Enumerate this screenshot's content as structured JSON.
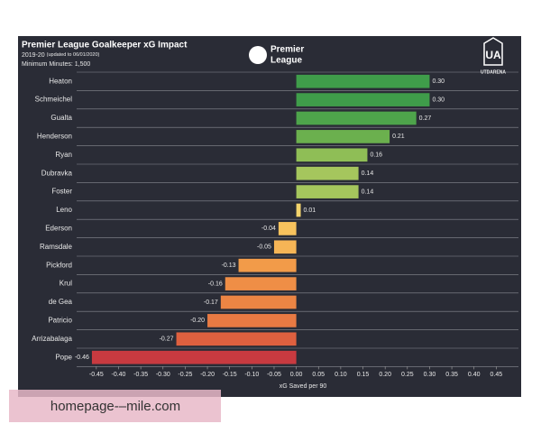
{
  "chart_data": {
    "type": "bar",
    "orientation": "horizontal",
    "title": "Premier League Goalkeeper xG Impact",
    "subtitle": "2019-20",
    "subtitle_note": "(updated to 06/01/2020)",
    "note": "Minimum Minutes: 1,500",
    "xlabel": "xG Saved per 90",
    "categories": [
      "Heaton",
      "Schmeichel",
      "Gualta",
      "Henderson",
      "Ryan",
      "Dubravka",
      "Foster",
      "Leno",
      "Ederson",
      "Ramsdale",
      "Pickford",
      "Krul",
      "de Gea",
      "Patricio",
      "Arrizabalaga",
      "Pope"
    ],
    "values": [
      0.3,
      0.3,
      0.27,
      0.21,
      0.16,
      0.14,
      0.14,
      0.01,
      -0.04,
      -0.05,
      -0.13,
      -0.16,
      -0.17,
      -0.2,
      -0.27,
      -0.46
    ],
    "value_labels": [
      "0.30",
      "0.30",
      "0.27",
      "0.21",
      "0.16",
      "0.14",
      "0.14",
      "0.01",
      "-0.04",
      "-0.05",
      "-0.13",
      "-0.16",
      "-0.17",
      "-0.20",
      "-0.27",
      "-0.46"
    ],
    "colors": [
      "#3f9d4a",
      "#3f9d4a",
      "#4ea44b",
      "#6bb04e",
      "#8fbe56",
      "#a5c65d",
      "#a5c65d",
      "#f3d36c",
      "#f7c25d",
      "#f6b556",
      "#f29b49",
      "#ef8e46",
      "#ec8544",
      "#e87a43",
      "#df603f",
      "#c83a40"
    ],
    "xlim": [
      -0.47,
      0.5
    ],
    "xticks": [
      {
        "value": -0.45,
        "label": "-0.45"
      },
      {
        "value": -0.4,
        "label": "-0.40"
      },
      {
        "value": -0.35,
        "label": "-0.35"
      },
      {
        "value": -0.3,
        "label": "-0.30"
      },
      {
        "value": -0.25,
        "label": "-0.25"
      },
      {
        "value": -0.2,
        "label": "-0.20"
      },
      {
        "value": -0.15,
        "label": "-0.15"
      },
      {
        "value": -0.1,
        "label": "-0.10"
      },
      {
        "value": -0.05,
        "label": "-0.05"
      },
      {
        "value": 0,
        "label": "0.00"
      },
      {
        "value": 0.05,
        "label": "0.05"
      },
      {
        "value": 0.1,
        "label": "0.10"
      },
      {
        "value": 0.15,
        "label": "0.15"
      },
      {
        "value": 0.2,
        "label": "0.20"
      },
      {
        "value": 0.25,
        "label": "0.25"
      },
      {
        "value": 0.3,
        "label": "0.30"
      },
      {
        "value": 0.35,
        "label": "0.35"
      },
      {
        "value": 0.4,
        "label": "0.40"
      },
      {
        "value": 0.45,
        "label": "0.45"
      }
    ],
    "grid": true
  },
  "logos": {
    "league": [
      "Premier",
      "League"
    ],
    "brand_mark": "UA",
    "brand": "UTDARENA"
  },
  "watermark": "homepage-–mile.com"
}
